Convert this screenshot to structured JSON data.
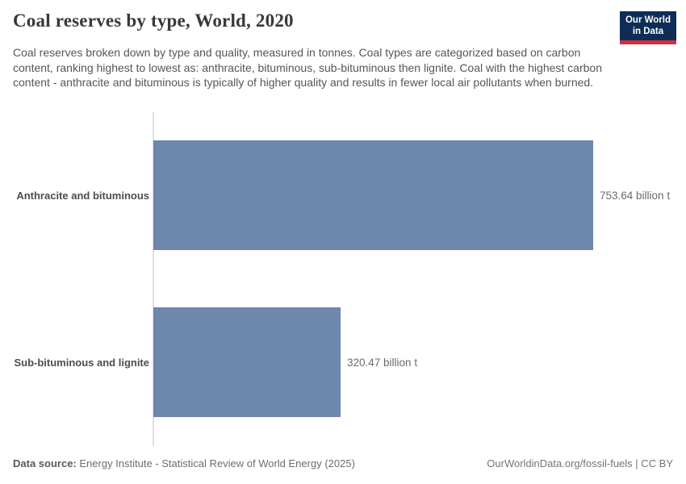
{
  "header": {
    "title": "Coal reserves by type, World, 2020",
    "subtitle": "Coal reserves broken down by type and quality, measured in tonnes. Coal types are categorized based on carbon content, ranking highest to lowest as: anthracite, bituminous, sub-bituminous then lignite. Coal with the highest carbon content - anthracite and bituminous is typically of higher quality and results in fewer local air pollutants when burned.",
    "logo": {
      "line1": "Our World",
      "line2": "in Data"
    }
  },
  "chart_data": {
    "type": "bar",
    "orientation": "horizontal",
    "title": "Coal reserves by type, World, 2020",
    "categories": [
      "Anthracite and bituminous",
      "Sub-bituminous and lignite"
    ],
    "values": [
      753.64,
      320.47
    ],
    "value_labels": [
      "753.64 billion t",
      "320.47 billion t"
    ],
    "unit": "billion tonnes",
    "xlim": [
      0,
      753.64
    ],
    "grid": false,
    "legend": "none",
    "bar_color": "#6d87ad"
  },
  "colors": {
    "bar": "#6d87ad",
    "logo_bg": "#0d2d57",
    "logo_accent": "#cf303b",
    "axis": "#e0e0e0"
  },
  "footer": {
    "datasource_label": "Data source:",
    "datasource_text": "Energy Institute - Statistical Review of World Energy (2025)",
    "credit": "OurWorldinData.org/fossil-fuels | CC BY"
  }
}
